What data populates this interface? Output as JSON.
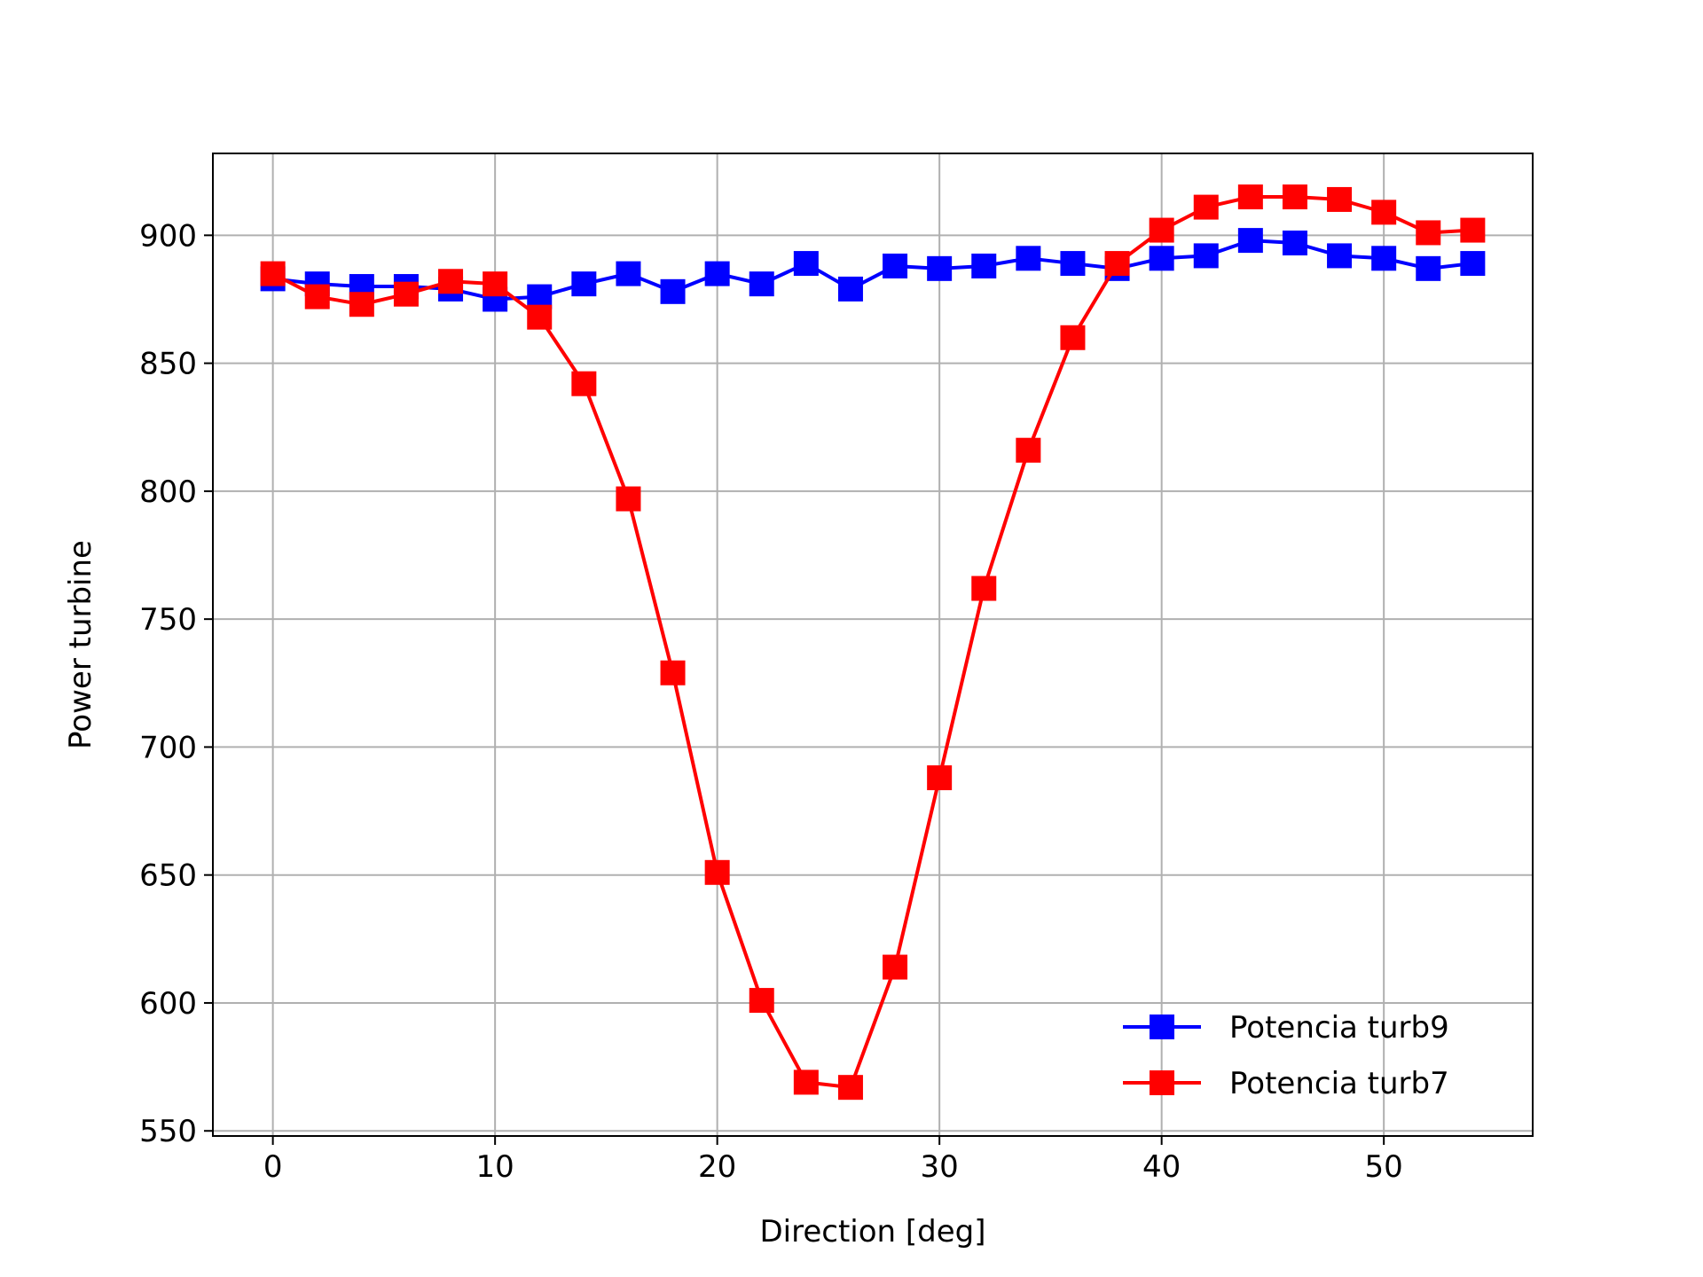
{
  "chart_data": {
    "type": "line",
    "title": "",
    "xlabel": "Direction [deg]",
    "ylabel": "Power turbine",
    "xlim": [
      -2.7,
      56.7
    ],
    "ylim": [
      548,
      932
    ],
    "xticks": [
      "0",
      "10",
      "20",
      "30",
      "40",
      "50"
    ],
    "yticks": [
      "550",
      "600",
      "650",
      "700",
      "750",
      "800",
      "850",
      "900"
    ],
    "grid": true,
    "legend_position": "lower right",
    "marker": "square",
    "x": [
      0,
      2,
      4,
      6,
      8,
      10,
      12,
      14,
      16,
      18,
      20,
      22,
      24,
      26,
      28,
      30,
      32,
      34,
      36,
      38,
      40,
      42,
      44,
      46,
      48,
      50,
      52,
      54
    ],
    "series": [
      {
        "name": "Potencia turb9",
        "color": "#0000ff",
        "values": [
          883,
          881,
          880,
          880,
          879,
          875,
          876,
          881,
          885,
          878,
          885,
          881,
          889,
          879,
          888,
          887,
          888,
          891,
          889,
          887,
          891,
          892,
          898,
          897,
          892,
          891,
          887,
          889
        ]
      },
      {
        "name": "Potencia turb7",
        "color": "#ff0000",
        "values": [
          885,
          876,
          873,
          877,
          882,
          881,
          868,
          842,
          797,
          729,
          651,
          601,
          569,
          567,
          614,
          688,
          762,
          816,
          860,
          889,
          902,
          911,
          915,
          915,
          914,
          909,
          901,
          902
        ]
      }
    ]
  }
}
